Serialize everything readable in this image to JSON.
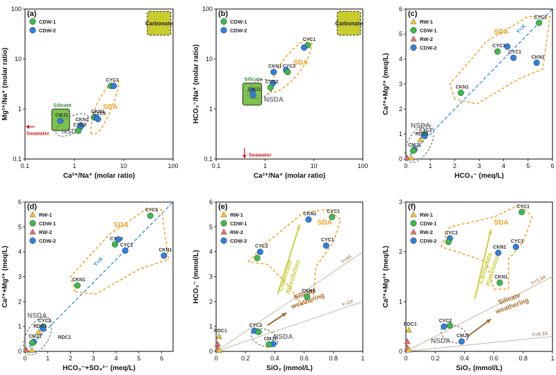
{
  "colors": {
    "RW-1": "#f2c522",
    "CDW-1": "#3cba4a",
    "RW-2": "#e8686a",
    "CDW-2": "#2f7fe0",
    "sda": "#f0a020",
    "nsda": "#777777",
    "silicate_fill": "#7cc44a",
    "carbonate_fill": "#c8cc2c",
    "refline": "#2b8cd4",
    "seawater": "#d42020",
    "silicate_arrow": "#a66a30",
    "carbonate_arrow": "#c9cf3e",
    "ratio_line": "#c7b49c"
  },
  "chart_data": [
    {
      "type": "scatter",
      "panel": "(a)",
      "scale": "log",
      "xlabel": "Ca²⁺/Na⁺ (molar ratio)",
      "ylabel": "Mg²⁺/Na⁺ (molar ratio)",
      "xlim": [
        0.1,
        100
      ],
      "ylim": [
        0.1,
        100
      ],
      "xticks": [
        0.1,
        1,
        10,
        100
      ],
      "yticks": [
        0.1,
        1,
        10,
        100
      ],
      "xtick_labels": [
        "0.1",
        "1",
        "10",
        "100"
      ],
      "ytick_labels": [
        "0.1",
        "1",
        "10",
        "100"
      ],
      "legend": [
        {
          "name": "CDW-1",
          "marker": "circle"
        },
        {
          "name": "CDW-2",
          "marker": "circle"
        }
      ],
      "points": [
        {
          "series": "CDW-1",
          "x": 5.5,
          "y": 2.9,
          "label": "CYC1"
        },
        {
          "series": "CDW-2",
          "x": 6.3,
          "y": 2.9
        },
        {
          "series": "CDW-1",
          "x": 2.5,
          "y": 0.68
        },
        {
          "series": "CDW-2",
          "x": 2.8,
          "y": 0.68,
          "label": "CKN1"
        },
        {
          "series": "CDW-2",
          "x": 3.0,
          "y": 0.63,
          "label": "CYC3"
        },
        {
          "series": "CDW-2",
          "x": 1.35,
          "y": 0.47,
          "label": "CKN1"
        },
        {
          "series": "CDW-2",
          "x": 1.3,
          "y": 0.43
        },
        {
          "series": "CDW-1",
          "x": 1.2,
          "y": 0.37,
          "label": "CYC2"
        },
        {
          "series": "CDW-2",
          "x": 0.52,
          "y": 0.58,
          "label": "CMJ1"
        }
      ],
      "regions": [
        {
          "name": "Silicate",
          "x": [
            0.35,
            0.8
          ],
          "y": [
            0.37,
            1.0
          ]
        },
        {
          "name": "Carbonate",
          "x": [
            30,
            90
          ],
          "y": [
            30,
            90
          ]
        }
      ],
      "annotations": [
        "SDA",
        "NSDA",
        "Seawater"
      ]
    },
    {
      "type": "scatter",
      "panel": "(b)",
      "scale": "log",
      "xlabel": "Ca²⁺/Na⁺ (molar ratio)",
      "ylabel": "HCO₃⁻/Na⁺ (molar ratio)",
      "xlim": [
        0.1,
        100
      ],
      "ylim": [
        0.1,
        100
      ],
      "xticks": [
        0.1,
        1,
        10,
        100
      ],
      "yticks": [
        0.1,
        1,
        10,
        100
      ],
      "xtick_labels": [
        "0.1",
        "1",
        "10",
        "100"
      ],
      "ytick_labels": [
        "0.1",
        "1",
        "10",
        "100"
      ],
      "legend": [
        {
          "name": "CDW-1",
          "marker": "circle"
        },
        {
          "name": "CDW-2",
          "marker": "circle"
        }
      ],
      "points": [
        {
          "series": "CDW-1",
          "x": 7.5,
          "y": 19,
          "label": "CYC1"
        },
        {
          "series": "CDW-2",
          "x": 6.3,
          "y": 17
        },
        {
          "series": "CDW-2",
          "x": 1.5,
          "y": 5.5,
          "label": "CKN1"
        },
        {
          "series": "CDW-2",
          "x": 2.7,
          "y": 6.0
        },
        {
          "series": "CDW-1",
          "x": 2.9,
          "y": 5.5,
          "label": "CYC3"
        },
        {
          "series": "CDW-2",
          "x": 1.45,
          "y": 3.3
        },
        {
          "series": "CDW-1",
          "x": 1.3,
          "y": 2.7,
          "label": "CYC2"
        },
        {
          "series": "CDW-2",
          "x": 0.55,
          "y": 2.3
        },
        {
          "series": "CDW-2",
          "x": 0.57,
          "y": 1.9,
          "label": "CMJ1"
        }
      ],
      "regions": [
        {
          "name": "Silicate",
          "x": [
            0.35,
            0.85
          ],
          "y": [
            1.2,
            3.3
          ]
        },
        {
          "name": "Carbonate",
          "x": [
            30,
            90
          ],
          "y": [
            30,
            90
          ]
        }
      ],
      "annotations": [
        "SDA",
        "NSDA",
        "Seawater"
      ]
    },
    {
      "type": "scatter",
      "panel": "(c)",
      "scale": "linear",
      "xlabel": "HCO₃⁻ (meq/L)",
      "ylabel": "Ca²⁺+Mg²⁺ (meq/L)",
      "xlim": [
        0,
        6
      ],
      "ylim": [
        0,
        6
      ],
      "xticks": [
        0,
        1,
        2,
        3,
        4,
        5,
        6
      ],
      "yticks": [
        0,
        1,
        2,
        3,
        4,
        5,
        6
      ],
      "xtick_labels": [
        "0",
        "1",
        "2",
        "3",
        "4",
        "5",
        "6"
      ],
      "ytick_labels": [
        "0",
        "1",
        "2",
        "3",
        "4",
        "5",
        "6"
      ],
      "legend": [
        {
          "name": "RW-1",
          "marker": "triangle"
        },
        {
          "name": "CDW-1",
          "marker": "circle"
        },
        {
          "name": "RW-2",
          "marker": "triangle"
        },
        {
          "name": "CDW-2",
          "marker": "circle"
        }
      ],
      "points": [
        {
          "series": "CDW-1",
          "x": 5.45,
          "y": 5.45,
          "label": "CYC1"
        },
        {
          "series": "CDW-2",
          "x": 4.15,
          "y": 4.5
        },
        {
          "series": "CDW-1",
          "x": 3.75,
          "y": 4.3,
          "label": "CYC3"
        },
        {
          "series": "CDW-2",
          "x": 4.4,
          "y": 4.05,
          "label": "CYC1"
        },
        {
          "series": "CDW-2",
          "x": 5.35,
          "y": 3.85,
          "label": "CKN1"
        },
        {
          "series": "CDW-1",
          "x": 2.25,
          "y": 2.65,
          "label": "CKN1"
        },
        {
          "series": "CDW-1",
          "x": 0.78,
          "y": 1.0
        },
        {
          "series": "CDW-2",
          "x": 0.75,
          "y": 0.93,
          "label": "CYC2"
        },
        {
          "series": "RW-1",
          "x": 0.6,
          "y": 0.78,
          "label": "RDC1"
        },
        {
          "series": "CDW-2",
          "x": 0.35,
          "y": 0.38
        },
        {
          "series": "CDW-1",
          "x": 0.3,
          "y": 0.33,
          "label": "CMJ1"
        },
        {
          "series": "RW-2",
          "x": 0.05,
          "y": 0.05
        },
        {
          "series": "RW-1",
          "x": 0.22,
          "y": 0.05
        }
      ],
      "reference_lines": [
        "Y=X"
      ],
      "annotations": [
        "SDA",
        "NSDA"
      ]
    },
    {
      "type": "scatter",
      "panel": "(d)",
      "scale": "linear",
      "xlabel": "HCO₃⁻+SO₄²⁻ (meq/L)",
      "ylabel": "Ca²⁺+Mg²⁺ (meq/L)",
      "xlim": [
        0,
        6.5
      ],
      "ylim": [
        0,
        6
      ],
      "xticks": [
        0,
        1,
        2,
        3,
        4,
        5,
        6
      ],
      "yticks": [
        0,
        1,
        2,
        3,
        4,
        5,
        6
      ],
      "xtick_labels": [
        "0",
        "1",
        "2",
        "3",
        "4",
        "5",
        "6"
      ],
      "ytick_labels": [
        "0",
        "1",
        "2",
        "3",
        "4",
        "5",
        "6"
      ],
      "legend": [
        {
          "name": "RW-1",
          "marker": "triangle"
        },
        {
          "name": "CDW-1",
          "marker": "circle"
        },
        {
          "name": "RW-2",
          "marker": "triangle"
        },
        {
          "name": "CDW-2",
          "marker": "circle"
        }
      ],
      "points": [
        {
          "series": "CDW-1",
          "x": 5.5,
          "y": 5.45,
          "label": "CYC1"
        },
        {
          "series": "CDW-1",
          "x": 3.95,
          "y": 4.3,
          "label": "CYC3"
        },
        {
          "series": "CDW-2",
          "x": 4.1,
          "y": 4.5
        },
        {
          "series": "CDW-2",
          "x": 4.4,
          "y": 4.05,
          "label": "CYC1"
        },
        {
          "series": "CDW-2",
          "x": 6.1,
          "y": 3.85,
          "label": "CKN1"
        },
        {
          "series": "CDW-1",
          "x": 2.3,
          "y": 2.65,
          "label": "CKN1"
        },
        {
          "series": "CDW-1",
          "x": 0.8,
          "y": 1.0,
          "label": "CYC2"
        },
        {
          "series": "CDW-2",
          "x": 0.78,
          "y": 0.92
        },
        {
          "series": "RW-1",
          "x": 0.6,
          "y": 0.78,
          "label": "RDC1"
        },
        {
          "series": "CDW-2",
          "x": 0.38,
          "y": 0.38,
          "label": "CMJ1"
        },
        {
          "series": "CDW-1",
          "x": 0.32,
          "y": 0.34
        },
        {
          "series": "RW-2",
          "x": 0.06,
          "y": 0.06
        },
        {
          "series": "RW-1",
          "x": 0.3,
          "y": 0.05
        }
      ],
      "reference_lines": [
        "Y=X"
      ],
      "annotations": [
        "SDA",
        "NSDA",
        "RDC1"
      ]
    },
    {
      "type": "scatter",
      "panel": "(e)",
      "scale": "linear",
      "xlabel": "SiO₂ (mmol/L)",
      "ylabel": "HCO₃⁻ (mmol/L)",
      "xlim": [
        0,
        1
      ],
      "ylim": [
        0,
        6
      ],
      "xticks": [
        0,
        0.2,
        0.4,
        0.6,
        0.8,
        1
      ],
      "yticks": [
        0,
        1,
        2,
        3,
        4,
        5,
        6
      ],
      "xtick_labels": [
        "0",
        "0.2",
        "0.4",
        "0.6",
        "0.8",
        "1"
      ],
      "ytick_labels": [
        "0",
        "1",
        "2",
        "3",
        "4",
        "5",
        "6"
      ],
      "legend": [
        {
          "name": "RW-1",
          "marker": "triangle"
        },
        {
          "name": "CDW-1",
          "marker": "circle"
        },
        {
          "name": "RW-2",
          "marker": "triangle"
        },
        {
          "name": "CDW-2",
          "marker": "circle"
        }
      ],
      "points": [
        {
          "series": "CDW-2",
          "x": 0.63,
          "y": 5.3,
          "label": "CKN1"
        },
        {
          "series": "CDW-1",
          "x": 0.79,
          "y": 5.4,
          "label": "CYC1"
        },
        {
          "series": "CDW-2",
          "x": 0.75,
          "y": 4.25,
          "label": "CYC1"
        },
        {
          "series": "CDW-2",
          "x": 0.3,
          "y": 4.0,
          "label": "CYC2"
        },
        {
          "series": "CDW-1",
          "x": 0.28,
          "y": 3.75
        },
        {
          "series": "CDW-1",
          "x": 0.62,
          "y": 2.2,
          "label": "CKN1"
        },
        {
          "series": "CDW-2",
          "x": 0.26,
          "y": 0.83,
          "label": "CYC2"
        },
        {
          "series": "CDW-1",
          "x": 0.29,
          "y": 0.78
        },
        {
          "series": "CDW-2",
          "x": 0.39,
          "y": 0.3
        },
        {
          "series": "CDW-1",
          "x": 0.36,
          "y": 0.28,
          "label": "CMJ1"
        },
        {
          "series": "RW-1",
          "x": 0.02,
          "y": 0.6,
          "label": "RDC1"
        },
        {
          "series": "RW-2",
          "x": 0.01,
          "y": 0.3
        },
        {
          "series": "RW-2",
          "x": 0.01,
          "y": 0.12
        },
        {
          "series": "RW-1",
          "x": 0.02,
          "y": 0.05
        }
      ],
      "reference_lines": [
        "Y=4X",
        "Y=2X"
      ],
      "annotations": [
        "SDA",
        "NSDA",
        "Carbonate dissolution",
        "Silicate weathering"
      ]
    },
    {
      "type": "scatter",
      "panel": "(f)",
      "scale": "linear",
      "xlabel": "SiO₂ (mmol/L)",
      "ylabel": "Ca²⁺+Mg²⁺ (meq/L)",
      "xlim": [
        0,
        1
      ],
      "ylim": [
        0,
        3
      ],
      "xticks": [
        0,
        0.2,
        0.4,
        0.6,
        0.8,
        1
      ],
      "yticks": [
        0,
        1,
        2,
        3
      ],
      "xtick_labels": [
        "0",
        "0.2",
        "0.4",
        "0.6",
        "0.8",
        "1"
      ],
      "ytick_labels": [
        "0",
        "1",
        "2",
        "3"
      ],
      "legend": [
        {
          "name": "RW-1",
          "marker": "triangle"
        },
        {
          "name": "CDW-1",
          "marker": "circle"
        },
        {
          "name": "RW-2",
          "marker": "triangle"
        },
        {
          "name": "CDW-2",
          "marker": "circle"
        }
      ],
      "points": [
        {
          "series": "CDW-1",
          "x": 0.79,
          "y": 2.8,
          "label": "CYC1"
        },
        {
          "series": "CDW-2",
          "x": 0.3,
          "y": 2.27,
          "label": "CYC3"
        },
        {
          "series": "CDW-1",
          "x": 0.29,
          "y": 2.2
        },
        {
          "series": "CDW-2",
          "x": 0.75,
          "y": 2.1,
          "label": "CYC1"
        },
        {
          "series": "CDW-2",
          "x": 0.63,
          "y": 1.98,
          "label": "CKN1"
        },
        {
          "series": "CDW-1",
          "x": 0.64,
          "y": 1.38,
          "label": "CKN1"
        },
        {
          "series": "CDW-2",
          "x": 0.26,
          "y": 0.5,
          "label": "CYC2"
        },
        {
          "series": "CDW-1",
          "x": 0.3,
          "y": 0.52
        },
        {
          "series": "CDW-2",
          "x": 0.38,
          "y": 0.2,
          "label": "CMJ1"
        },
        {
          "series": "RW-1",
          "x": 0.02,
          "y": 0.43,
          "label": "RDC1"
        },
        {
          "series": "RW-2",
          "x": 0.01,
          "y": 0.2
        },
        {
          "series": "RW-2",
          "x": 0.01,
          "y": 0.08
        },
        {
          "series": "RW-1",
          "x": 0.02,
          "y": 0.03
        }
      ],
      "reference_lines": [
        "Y=1.5X",
        "Y=0.3X"
      ],
      "annotations": [
        "SDA",
        "NSDA",
        "Carbonate dissolution",
        "Silicate weathering"
      ]
    }
  ]
}
